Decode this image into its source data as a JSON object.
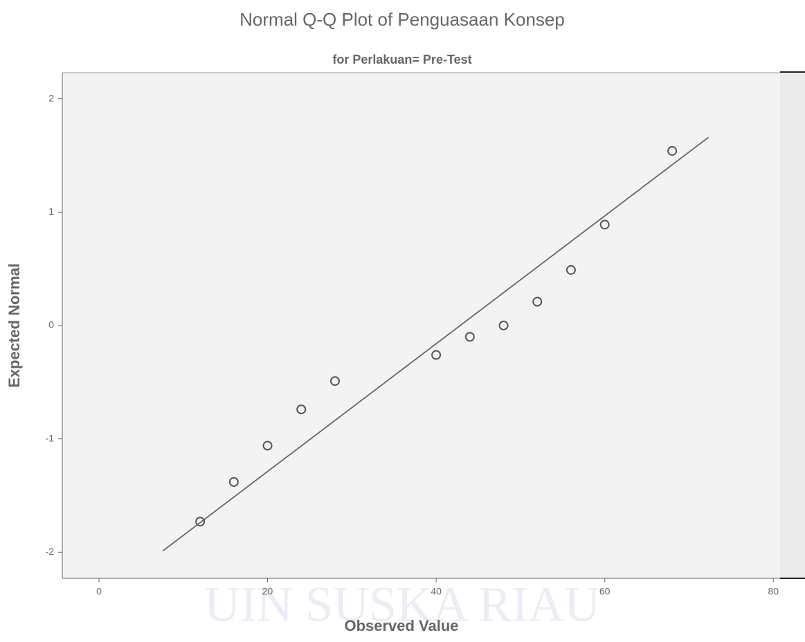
{
  "chart_data": {
    "type": "scatter",
    "title": "Normal Q-Q Plot of Penguasaan Konsep",
    "subtitle": "for Perlakuan= Pre-Test",
    "x_label": "Observed Value",
    "y_label": "Expected Normal",
    "watermark": "UIN SUSKA RIAU",
    "x": [
      12,
      16,
      20,
      24,
      28,
      40,
      44,
      48,
      52,
      56,
      60,
      68
    ],
    "values": [
      -1.73,
      -1.38,
      -1.06,
      -0.74,
      -0.49,
      -0.26,
      -0.1,
      0.0,
      0.21,
      0.49,
      0.89,
      1.54
    ],
    "color": "#555555",
    "reference_line": {
      "x": [
        7.55,
        72.3
      ],
      "y": [
        -1.99,
        1.66
      ],
      "color": "#666666"
    },
    "xlim": [
      -4.35,
      80.8
    ],
    "ylim": [
      -2.23,
      2.23
    ],
    "xticks": [
      0,
      20,
      40,
      60,
      80
    ],
    "yticks": [
      -2,
      -1,
      0,
      1,
      2
    ]
  }
}
